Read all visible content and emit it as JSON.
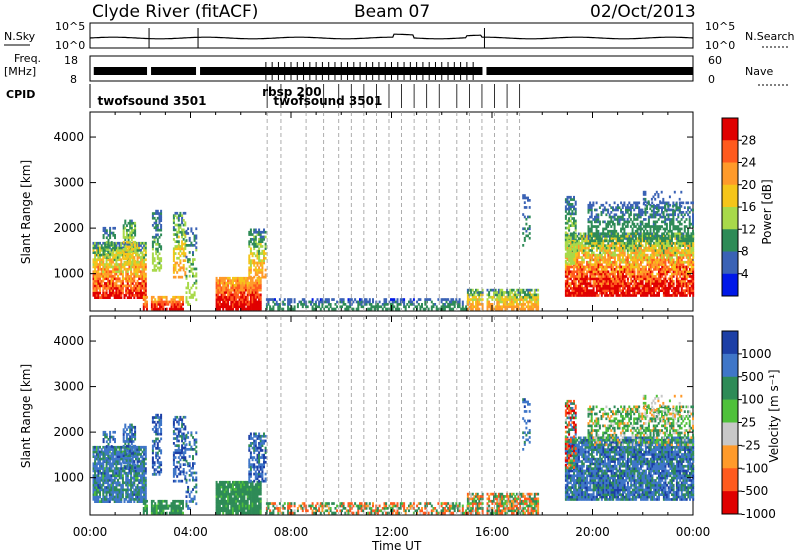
{
  "header": {
    "station": "Clyde River (fitACF)",
    "beam": "Beam 07",
    "date": "02/Oct/2013"
  },
  "side_labels": {
    "nsky": "N.Sky",
    "nsearch": "N.Search",
    "freq_line1": "Freq.",
    "freq_line2": "[MHz]",
    "nave": "Nave",
    "cpid": "CPID",
    "nsky_ticks": [
      "10^5",
      "10^0"
    ],
    "nsearch_ticks": [
      "10^5",
      "10^0"
    ],
    "freq_ticks": [
      "18",
      "8"
    ],
    "nave_ticks": [
      "60",
      "0"
    ]
  },
  "cpid_labels": [
    {
      "text": "twofsound 3501",
      "hour": 0.3,
      "row": 1
    },
    {
      "text": "rbsp 200",
      "hour": 6.85,
      "row": 0
    },
    {
      "text": "twofsound 3501",
      "hour": 7.3,
      "row": 1
    }
  ],
  "chart_data": [
    {
      "type": "heatmap",
      "name": "power",
      "ylabel": "Slant Range [km]",
      "yticks": [
        1000,
        2000,
        3000,
        4000
      ],
      "ylim": [
        180,
        4550
      ],
      "xlim": [
        0,
        24
      ],
      "colorbar_label": "Power [dB]",
      "colorbar_ticks": [
        "28",
        "24",
        "20",
        "16",
        "12",
        "8",
        "4"
      ],
      "colorbar_colors": [
        "#e00000",
        "#ff5a1e",
        "#ff9a2a",
        "#f5c51a",
        "#a8d94a",
        "#2e8b57",
        "#3a62b5",
        "#0018e8"
      ],
      "colorbar_range": [
        0,
        32
      ]
    },
    {
      "type": "heatmap",
      "name": "velocity",
      "ylabel": "Slant Range [km]",
      "yticks": [
        1000,
        2000,
        3000,
        4000
      ],
      "ylim": [
        180,
        4550
      ],
      "xlim": [
        0,
        24
      ],
      "xlabel": "Time UT",
      "xticks": [
        "00:00",
        "04:00",
        "08:00",
        "12:00",
        "16:00",
        "20:00",
        "00:00"
      ],
      "colorbar_label": "Velocity [m s⁻¹]",
      "colorbar_ticks": [
        "1000",
        "500",
        "100",
        "25",
        "-25",
        "-100",
        "-500",
        "-1000"
      ],
      "colorbar_colors": [
        "#1c3fa6",
        "#3f76c8",
        "#2e8b57",
        "#4fc13a",
        "#c8c8c8",
        "#ff9a2a",
        "#ff5a1e",
        "#e00000"
      ]
    }
  ],
  "mode_change_hours": [
    7.05,
    7.6,
    8.6,
    9.3,
    9.9,
    10.4,
    10.9,
    11.4,
    11.9,
    12.4,
    12.9,
    13.4,
    13.9,
    14.6,
    15.1,
    15.6,
    16.1,
    16.6,
    17.1
  ],
  "gaps_hours": [
    2.35,
    4.3,
    15.7
  ],
  "echo_regions": [
    {
      "t0": 0.1,
      "t1": 2.2,
      "r0": 450,
      "r1": 1650,
      "dense": 0.85,
      "pwr": [
        4,
        30
      ],
      "vel": [
        40,
        800
      ]
    },
    {
      "t0": 1.3,
      "t1": 1.8,
      "r0": 1200,
      "r1": 2150,
      "dense": 0.6,
      "pwr": [
        6,
        20
      ],
      "vel": [
        100,
        900
      ]
    },
    {
      "t0": 0.5,
      "t1": 1.0,
      "r0": 1350,
      "r1": 2000,
      "dense": 0.45,
      "pwr": [
        4,
        14
      ],
      "vel": [
        100,
        900
      ]
    },
    {
      "t0": 2.1,
      "t1": 3.7,
      "r0": 200,
      "r1": 500,
      "dense": 0.8,
      "pwr": [
        14,
        30
      ],
      "vel": [
        20,
        200
      ]
    },
    {
      "t0": 2.4,
      "t1": 2.8,
      "r0": 1050,
      "r1": 2400,
      "dense": 0.55,
      "pwr": [
        4,
        14
      ],
      "vel": [
        200,
        1100
      ]
    },
    {
      "t0": 3.3,
      "t1": 3.8,
      "r0": 900,
      "r1": 2350,
      "dense": 0.6,
      "pwr": [
        4,
        22
      ],
      "vel": [
        200,
        1100
      ]
    },
    {
      "t0": 3.8,
      "t1": 4.3,
      "r0": 300,
      "r1": 2000,
      "dense": 0.35,
      "pwr": [
        4,
        16
      ],
      "vel": [
        100,
        900
      ]
    },
    {
      "t0": 5.0,
      "t1": 6.8,
      "r0": 200,
      "r1": 900,
      "dense": 0.9,
      "pwr": [
        16,
        32
      ],
      "vel": [
        30,
        250
      ]
    },
    {
      "t0": 6.3,
      "t1": 7.0,
      "r0": 900,
      "r1": 1950,
      "dense": 0.65,
      "pwr": [
        4,
        22
      ],
      "vel": [
        200,
        1100
      ]
    },
    {
      "t0": 7.0,
      "t1": 15.0,
      "r0": 200,
      "r1": 450,
      "dense": 0.55,
      "pwr": [
        2,
        12
      ],
      "vel": [
        -200,
        200
      ]
    },
    {
      "t0": 15.0,
      "t1": 17.8,
      "r0": 200,
      "r1": 650,
      "dense": 0.8,
      "pwr": [
        4,
        24
      ],
      "vel": [
        -150,
        150
      ]
    },
    {
      "t0": 17.2,
      "t1": 17.5,
      "r0": 1600,
      "r1": 2700,
      "dense": 0.3,
      "pwr": [
        4,
        10
      ],
      "vel": [
        100,
        900
      ]
    },
    {
      "t0": 18.9,
      "t1": 24.0,
      "r0": 500,
      "r1": 1900,
      "dense": 0.85,
      "pwr": [
        4,
        32
      ],
      "vel": [
        60,
        900
      ]
    },
    {
      "t0": 19.8,
      "t1": 24.0,
      "r0": 1700,
      "r1": 2550,
      "dense": 0.5,
      "pwr": [
        4,
        12
      ],
      "vel": [
        -40,
        120
      ]
    },
    {
      "t0": 18.9,
      "t1": 19.3,
      "r0": 1200,
      "r1": 2700,
      "dense": 0.6,
      "pwr": [
        4,
        16
      ],
      "vel": [
        -600,
        400
      ]
    },
    {
      "t0": 22.0,
      "t1": 23.5,
      "r0": 2300,
      "r1": 2800,
      "dense": 0.25,
      "pwr": [
        4,
        10
      ],
      "vel": [
        -40,
        40
      ]
    }
  ]
}
